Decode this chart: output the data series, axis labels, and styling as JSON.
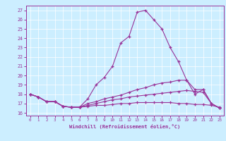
{
  "xlabel": "Windchill (Refroidissement éolien,°C)",
  "ylabel": "",
  "bg_color": "#cceeff",
  "grid_color": "#ffffff",
  "line_color": "#993399",
  "x_ticks": [
    0,
    1,
    2,
    3,
    4,
    5,
    6,
    7,
    8,
    9,
    10,
    11,
    12,
    13,
    14,
    15,
    16,
    17,
    18,
    19,
    20,
    21,
    22,
    23
  ],
  "y_ticks": [
    16,
    17,
    18,
    19,
    20,
    21,
    22,
    23,
    24,
    25,
    26,
    27
  ],
  "ylim": [
    15.7,
    27.5
  ],
  "xlim": [
    -0.5,
    23.5
  ],
  "lines": [
    {
      "x": [
        0,
        1,
        2,
        3,
        4,
        5,
        6,
        7,
        8,
        9,
        10,
        11,
        12,
        13,
        14,
        15,
        16,
        17,
        18,
        19,
        20,
        21,
        22,
        23
      ],
      "y": [
        18.0,
        17.7,
        17.2,
        17.2,
        16.7,
        16.6,
        16.6,
        17.5,
        19.0,
        19.8,
        21.0,
        23.5,
        24.2,
        26.8,
        27.0,
        26.0,
        25.0,
        23.0,
        21.5,
        19.5,
        18.0,
        18.5,
        17.0,
        16.5
      ]
    },
    {
      "x": [
        0,
        1,
        2,
        3,
        4,
        5,
        6,
        7,
        8,
        9,
        10,
        11,
        12,
        13,
        14,
        15,
        16,
        17,
        18,
        19,
        20,
        21,
        22,
        23
      ],
      "y": [
        18.0,
        17.7,
        17.2,
        17.2,
        16.7,
        16.6,
        16.6,
        17.0,
        17.2,
        17.5,
        17.7,
        17.9,
        18.2,
        18.5,
        18.7,
        19.0,
        19.2,
        19.3,
        19.5,
        19.5,
        18.5,
        18.5,
        17.0,
        16.5
      ]
    },
    {
      "x": [
        0,
        1,
        2,
        3,
        4,
        5,
        6,
        7,
        8,
        9,
        10,
        11,
        12,
        13,
        14,
        15,
        16,
        17,
        18,
        19,
        20,
        21,
        22,
        23
      ],
      "y": [
        18.0,
        17.7,
        17.2,
        17.2,
        16.7,
        16.6,
        16.6,
        16.8,
        17.0,
        17.2,
        17.4,
        17.5,
        17.7,
        17.8,
        17.9,
        18.0,
        18.1,
        18.2,
        18.3,
        18.4,
        18.3,
        18.2,
        17.0,
        16.5
      ]
    },
    {
      "x": [
        0,
        1,
        2,
        3,
        4,
        5,
        6,
        7,
        8,
        9,
        10,
        11,
        12,
        13,
        14,
        15,
        16,
        17,
        18,
        19,
        20,
        21,
        22,
        23
      ],
      "y": [
        18.0,
        17.7,
        17.2,
        17.2,
        16.7,
        16.6,
        16.6,
        16.7,
        16.8,
        16.8,
        16.9,
        17.0,
        17.0,
        17.1,
        17.1,
        17.1,
        17.1,
        17.1,
        17.0,
        17.0,
        16.9,
        16.9,
        16.8,
        16.6
      ]
    }
  ]
}
